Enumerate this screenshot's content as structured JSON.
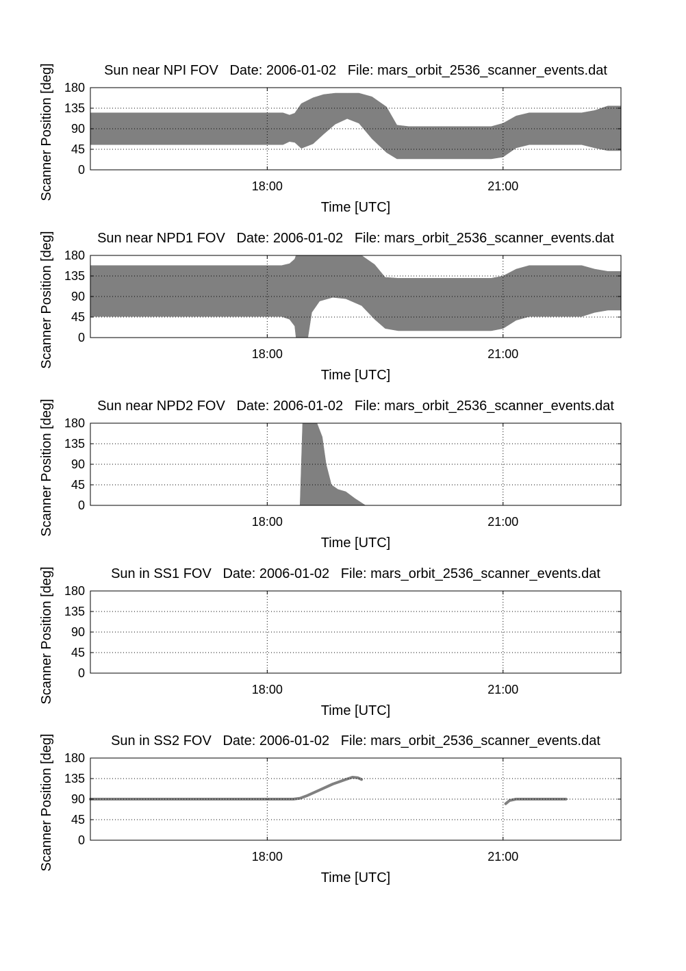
{
  "figure": {
    "background": "#ffffff",
    "fill_color": "#808080",
    "axis_color": "#000000",
    "grid_color": "#000000"
  },
  "chart_data": [
    {
      "type": "area",
      "title": "Sun near NPI FOV   Date: 2006-01-02   File: mars_orbit_2536_scanner_events.dat",
      "xlabel": "Time [UTC]",
      "ylabel": "Scanner Position [deg]",
      "xlim": [
        "15:45",
        "22:30"
      ],
      "ylim": [
        0,
        180
      ],
      "xticks": [
        "18:00",
        "21:00"
      ],
      "yticks": [
        0,
        45,
        90,
        135,
        180
      ],
      "grid": true,
      "x": [
        "15:45",
        "18:00",
        "18:12",
        "18:17",
        "18:21",
        "18:26",
        "18:35",
        "18:43",
        "18:52",
        "19:01",
        "19:10",
        "19:20",
        "19:31",
        "19:39",
        "19:48",
        "20:00",
        "20:30",
        "20:51",
        "21:00",
        "21:10",
        "21:20",
        "21:40",
        "22:00",
        "22:10",
        "22:20",
        "22:30"
      ],
      "lower": [
        55,
        55,
        55,
        62,
        60,
        47,
        57,
        78,
        100,
        112,
        102,
        68,
        38,
        24,
        24,
        24,
        24,
        24,
        28,
        48,
        55,
        55,
        55,
        48,
        42,
        42
      ],
      "upper": [
        125,
        125,
        125,
        120,
        124,
        145,
        158,
        165,
        168,
        168,
        168,
        160,
        138,
        98,
        95,
        95,
        95,
        95,
        102,
        118,
        125,
        125,
        125,
        130,
        140,
        140
      ]
    },
    {
      "type": "area",
      "title": "Sun near NPD1 FOV   Date: 2006-01-02   File: mars_orbit_2536_scanner_events.dat",
      "xlabel": "Time [UTC]",
      "ylabel": "Scanner Position [deg]",
      "xlim": [
        "15:45",
        "22:30"
      ],
      "ylim": [
        0,
        180
      ],
      "xticks": [
        "18:00",
        "21:00"
      ],
      "yticks": [
        0,
        45,
        90,
        135,
        180
      ],
      "grid": true,
      "segments": [
        {
          "x": [
            "15:45",
            "18:00",
            "18:11",
            "18:17",
            "18:21",
            "18:22"
          ],
          "lower": [
            46,
            46,
            46,
            40,
            25,
            0
          ],
          "upper": [
            158,
            158,
            158,
            162,
            172,
            180
          ]
        },
        {
          "x": [
            "18:22",
            "18:31"
          ],
          "lower": [
            0,
            0
          ],
          "upper": [
            180,
            180
          ]
        },
        {
          "x": [
            "18:31",
            "18:34",
            "18:40",
            "18:50",
            "19:00",
            "19:12",
            "19:22",
            "19:30",
            "19:40",
            "20:00",
            "20:51",
            "21:00",
            "21:10",
            "21:20",
            "21:40",
            "22:00",
            "22:10",
            "22:20",
            "22:30"
          ],
          "lower": [
            0,
            55,
            80,
            88,
            85,
            70,
            40,
            20,
            15,
            15,
            15,
            20,
            38,
            46,
            46,
            46,
            55,
            60,
            60
          ],
          "upper": [
            180,
            180,
            180,
            180,
            180,
            180,
            160,
            132,
            130,
            130,
            130,
            135,
            150,
            158,
            158,
            158,
            150,
            145,
            145
          ]
        }
      ]
    },
    {
      "type": "area",
      "title": "Sun near NPD2 FOV   Date: 2006-01-02   File: mars_orbit_2536_scanner_events.dat",
      "xlabel": "Time [UTC]",
      "ylabel": "Scanner Position [deg]",
      "xlim": [
        "15:45",
        "22:30"
      ],
      "ylim": [
        0,
        180
      ],
      "xticks": [
        "18:00",
        "21:00"
      ],
      "yticks": [
        0,
        45,
        90,
        135,
        180
      ],
      "grid": true,
      "x": [
        "18:25",
        "18:27",
        "18:33",
        "18:38",
        "18:42",
        "18:45",
        "18:49",
        "18:54",
        "19:00",
        "19:07",
        "19:15"
      ],
      "lower": [
        0,
        0,
        0,
        0,
        0,
        0,
        0,
        0,
        0,
        0,
        0
      ],
      "upper": [
        0,
        180,
        180,
        180,
        150,
        90,
        45,
        35,
        30,
        15,
        0
      ]
    },
    {
      "type": "area",
      "title": "Sun in SS1 FOV   Date: 2006-01-02   File: mars_orbit_2536_scanner_events.dat",
      "xlabel": "Time [UTC]",
      "ylabel": "Scanner Position [deg]",
      "xlim": [
        "15:45",
        "22:30"
      ],
      "ylim": [
        0,
        180
      ],
      "xticks": [
        "18:00",
        "21:00"
      ],
      "yticks": [
        0,
        45,
        90,
        135,
        180
      ],
      "grid": true,
      "segments": []
    },
    {
      "type": "line",
      "title": "Sun in SS2 FOV   Date: 2006-01-02   File: mars_orbit_2536_scanner_events.dat",
      "xlabel": "Time [UTC]",
      "ylabel": "Scanner Position [deg]",
      "xlim": [
        "15:45",
        "22:30"
      ],
      "ylim": [
        0,
        180
      ],
      "xticks": [
        "18:00",
        "21:00"
      ],
      "yticks": [
        0,
        45,
        90,
        135,
        180
      ],
      "grid": true,
      "segments": [
        {
          "x": [
            "15:45",
            "18:00",
            "18:20",
            "18:25",
            "18:30",
            "18:40",
            "18:50",
            "19:00",
            "19:05",
            "19:09",
            "19:12"
          ],
          "y": [
            90,
            90,
            90,
            92,
            97,
            110,
            123,
            133,
            138,
            137,
            133
          ]
        },
        {
          "x": [
            "21:02",
            "21:05",
            "21:10",
            "21:30",
            "21:48"
          ],
          "y": [
            80,
            87,
            90,
            90,
            90
          ]
        }
      ]
    }
  ]
}
